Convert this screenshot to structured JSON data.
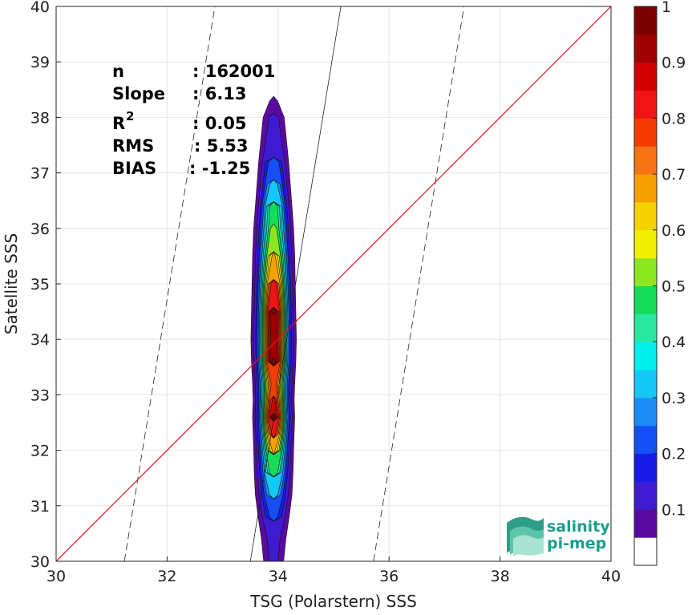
{
  "chart_data": {
    "type": "heatmap",
    "xlabel": "TSG (Polarstern) SSS",
    "ylabel": "Satellite SSS",
    "xlim": [
      30,
      40
    ],
    "ylim": [
      30,
      40
    ],
    "x_ticks": [
      "30",
      "32",
      "34",
      "36",
      "38",
      "40"
    ],
    "y_ticks": [
      "30",
      "31",
      "32",
      "33",
      "34",
      "35",
      "36",
      "37",
      "38",
      "39",
      "40"
    ],
    "grid": true,
    "stats": [
      {
        "label": "n",
        "value": ": 162001"
      },
      {
        "label": "Slope",
        "value": ": 6.13"
      },
      {
        "label": "R",
        "sup": "2",
        "value": ": 0.05"
      },
      {
        "label": "RMS",
        "value": ": 5.53"
      },
      {
        "label": "BIAS",
        "value": ": -1.25"
      }
    ],
    "identity_line_color": "#e8141e",
    "regression": {
      "slope": 6.13,
      "x_at_y30": 33.5,
      "offset_x": 1.72
    },
    "colorbar": {
      "ticks": [
        "0.1",
        "0.2",
        "0.3",
        "0.4",
        "0.5",
        "0.6",
        "0.7",
        "0.8",
        "0.9",
        "1"
      ],
      "colors": [
        "#ffffff",
        "#5a0aa0",
        "#3e1ad0",
        "#1a1ae6",
        "#1450f5",
        "#1e8cf5",
        "#14c8f5",
        "#00f0f0",
        "#28e6a0",
        "#14dc5a",
        "#8ce61e",
        "#f0f000",
        "#f5d200",
        "#f5a000",
        "#f57314",
        "#f53c00",
        "#f01414",
        "#d20000",
        "#a00000",
        "#7d0000"
      ]
    },
    "density_profile": [
      {
        "y": 30.0,
        "hw": 0.18,
        "peak": 0.12
      },
      {
        "y": 30.4,
        "hw": 0.22,
        "peak": 0.13
      },
      {
        "y": 30.8,
        "hw": 0.28,
        "peak": 0.22
      },
      {
        "y": 31.2,
        "hw": 0.33,
        "peak": 0.33
      },
      {
        "y": 31.6,
        "hw": 0.35,
        "peak": 0.5
      },
      {
        "y": 32.0,
        "hw": 0.36,
        "peak": 0.66
      },
      {
        "y": 32.3,
        "hw": 0.37,
        "peak": 0.82
      },
      {
        "y": 32.6,
        "hw": 0.38,
        "peak": 0.96
      },
      {
        "y": 32.9,
        "hw": 0.37,
        "peak": 0.86
      },
      {
        "y": 33.2,
        "hw": 0.38,
        "peak": 0.78
      },
      {
        "y": 33.6,
        "hw": 0.4,
        "peak": 0.98
      },
      {
        "y": 34.0,
        "hw": 0.41,
        "peak": 0.95
      },
      {
        "y": 34.5,
        "hw": 0.4,
        "peak": 0.98
      },
      {
        "y": 35.0,
        "hw": 0.39,
        "peak": 0.83
      },
      {
        "y": 35.5,
        "hw": 0.38,
        "peak": 0.66
      },
      {
        "y": 36.0,
        "hw": 0.36,
        "peak": 0.53
      },
      {
        "y": 36.4,
        "hw": 0.33,
        "peak": 0.5
      },
      {
        "y": 36.8,
        "hw": 0.3,
        "peak": 0.33
      },
      {
        "y": 37.2,
        "hw": 0.27,
        "peak": 0.24
      },
      {
        "y": 37.6,
        "hw": 0.23,
        "peak": 0.15
      },
      {
        "y": 38.0,
        "hw": 0.19,
        "peak": 0.12
      },
      {
        "y": 38.3,
        "hw": 0.07,
        "peak": 0.1
      }
    ]
  },
  "logo": {
    "line1": "salinity",
    "line2": "pi-mep"
  }
}
